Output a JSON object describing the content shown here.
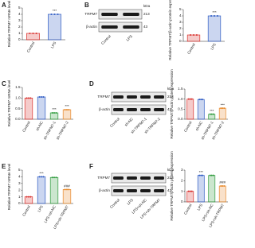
{
  "chart_data": [
    {
      "type": "bar",
      "panel": "A",
      "ylabel": "Relative TRPM7 mRNA level",
      "categories": [
        "Control",
        "LPS"
      ],
      "values": [
        1,
        4
      ],
      "colors": [
        "#d9302c",
        "#2f5cc4"
      ],
      "annotations": [
        null,
        "***"
      ],
      "ylim": [
        0,
        5
      ],
      "yticks": [
        0,
        1,
        2,
        3,
        4,
        5
      ]
    },
    {
      "type": "bar",
      "ylabel": "Relative TRPM7/β-actin protein expression",
      "categories": [
        "Control",
        "LPS"
      ],
      "values": [
        1,
        4
      ],
      "colors": [
        "#d9302c",
        "#2f5cc4"
      ],
      "annotations": [
        null,
        "***"
      ],
      "ylim": [
        0,
        5
      ],
      "yticks": [
        0,
        1,
        2,
        3,
        4,
        5
      ]
    },
    {
      "type": "bar",
      "panel": "C",
      "ylabel": "Relative TRPM7 mRNA level",
      "categories": [
        "Control",
        "sh-NC",
        "sh-TRPM7-1",
        "sh-TRPM7-2"
      ],
      "values": [
        1,
        1.05,
        0.3,
        0.45
      ],
      "colors": [
        "#d9302c",
        "#2f5cc4",
        "#2e9b3c",
        "#e8892a"
      ],
      "annotations": [
        null,
        null,
        "***",
        "***"
      ],
      "ylim": [
        0,
        1.5
      ],
      "yticks": [
        {
          "value": 0,
          "label": "0.0"
        },
        0.5,
        {
          "value": 1,
          "label": "1.0"
        },
        1.5
      ]
    },
    {
      "type": "bar",
      "ylabel": "Relative TRPM7/β-actin protein expression",
      "categories": [
        "Control",
        "sh-NC",
        "sh-TRPM7-1",
        "sh-TRPM7-2"
      ],
      "values": [
        1,
        0.98,
        0.25,
        0.55
      ],
      "colors": [
        "#d9302c",
        "#2f5cc4",
        "#2e9b3c",
        "#e8892a"
      ],
      "annotations": [
        null,
        null,
        "***",
        "***"
      ],
      "ylim": [
        0,
        1.5
      ],
      "yticks": [
        {
          "value": 0,
          "label": "0.0"
        },
        0.5,
        {
          "value": 1,
          "label": "1.0"
        },
        1.5
      ]
    },
    {
      "type": "bar",
      "panel": "E",
      "ylabel": "Relative TRPM7 mRNA level",
      "categories": [
        "Control",
        "LPS",
        "LPS+sh-NC",
        "LPS+sh-TRPM7"
      ],
      "values": [
        1,
        4,
        3.9,
        2.1
      ],
      "colors": [
        "#d9302c",
        "#2f5cc4",
        "#2e9b3c",
        "#e8892a"
      ],
      "annotations": [
        null,
        "***",
        null,
        "###"
      ],
      "ylim": [
        0,
        5
      ],
      "yticks": [
        0,
        1,
        2,
        3,
        4,
        5
      ]
    },
    {
      "type": "bar",
      "ylabel": "Relative TRPM7/β-actin protein expression",
      "categories": [
        "Control",
        "LPS",
        "LPS+sh-NC",
        "LPS+sh-TRPM7"
      ],
      "values": [
        1,
        2.5,
        2.5,
        1.5
      ],
      "colors": [
        "#d9302c",
        "#2f5cc4",
        "#2e9b3c",
        "#e8892a"
      ],
      "annotations": [
        null,
        "***",
        null,
        "###"
      ],
      "ylim": [
        0,
        3
      ],
      "yticks": [
        0,
        1,
        2,
        3
      ]
    }
  ],
  "blots": [
    {
      "panel": "B",
      "unit": "kDa",
      "rows": [
        {
          "label": "TRPM7",
          "kda": "213"
        },
        {
          "label": "β-actin",
          "kda": "43"
        }
      ],
      "lanes": [
        "Control",
        "LPS"
      ]
    },
    {
      "panel": "D",
      "unit": "kDa",
      "rows": [
        {
          "label": "TRPM7",
          "kda": "213"
        },
        {
          "label": "β-actin",
          "kda": "43"
        }
      ],
      "lanes": [
        "Control",
        "sh-NC",
        "sh-TRPM7-1",
        "sh-TRPM7-2"
      ]
    },
    {
      "panel": "F",
      "unit": "kDa",
      "rows": [
        {
          "label": "TRPM7",
          "kda": "213"
        },
        {
          "label": "β-actin",
          "kda": "43"
        }
      ],
      "lanes": [
        "Control",
        "LPS",
        "LPS+sh-NC",
        "LPS+sh-TRPM7"
      ]
    }
  ]
}
